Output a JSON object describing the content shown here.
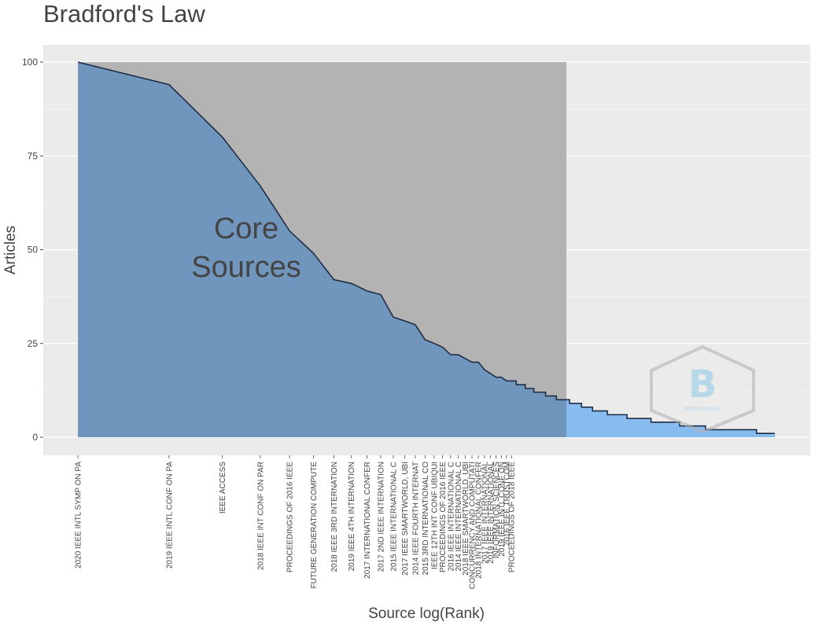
{
  "chart_data": {
    "type": "area",
    "title": "Bradford's Law",
    "xlabel": "Source log(Rank)",
    "ylabel": "Articles",
    "ylim": [
      0,
      100
    ],
    "yticks": [
      0,
      25,
      50,
      75,
      100
    ],
    "x_scale": "log",
    "grid": true,
    "annotation": "Core\nSources",
    "core_zone_count": 41,
    "num_sources": 200,
    "sources": [
      {
        "rank": 1,
        "name": "2020 IEEE INTL SYMP ON PA",
        "articles": 100
      },
      {
        "rank": 2,
        "name": "2019 IEEE INTL CONF ON PA",
        "articles": 94
      },
      {
        "rank": 3,
        "name": "IEEE ACCESS",
        "articles": 80
      },
      {
        "rank": 4,
        "name": "2018 IEEE INT CONF ON PAR",
        "articles": 67
      },
      {
        "rank": 5,
        "name": "PROCEEDINGS OF 2016 IEEE",
        "articles": 55
      },
      {
        "rank": 6,
        "name": "FUTURE GENERATION COMPUTE",
        "articles": 49
      },
      {
        "rank": 7,
        "name": "2018 IEEE 3RD INTERNATION",
        "articles": 42
      },
      {
        "rank": 8,
        "name": "2019 IEEE 4TH INTERNATION",
        "articles": 41
      },
      {
        "rank": 9,
        "name": "2017 INTERNATIONAL CONFER",
        "articles": 39
      },
      {
        "rank": 10,
        "name": "2017 2ND IEEE INTERNATION",
        "articles": 38
      },
      {
        "rank": 11,
        "name": "2015 IEEE INTERNATIONAL C",
        "articles": 32
      },
      {
        "rank": 12,
        "name": "2017 IEEE SMARTWORLD, UBI",
        "articles": 31
      },
      {
        "rank": 13,
        "name": "2014 IEEE FOURTH INTERNAT",
        "articles": 30
      },
      {
        "rank": 14,
        "name": "2015 3RD INTERNATIONAL CO",
        "articles": 26
      },
      {
        "rank": 15,
        "name": "IEEE 12TH INT CONF UBIQUI",
        "articles": 25
      },
      {
        "rank": 16,
        "name": "PROCEEDINGS OF 2016 IEEE",
        "articles": 24
      },
      {
        "rank": 17,
        "name": "2016 IEEE INTERNATIONAL C",
        "articles": 22
      },
      {
        "rank": 18,
        "name": "2014 IEEE INTERNATIONAL C",
        "articles": 22
      },
      {
        "rank": 19,
        "name": "2018 IEEE SMARTWORLD, UBI",
        "articles": 21
      },
      {
        "rank": 20,
        "name": "CONCURRENCY AND COMPUTATI",
        "articles": 20
      },
      {
        "rank": 21,
        "name": "2018 INTERNATIONAL CONFER",
        "articles": 20
      },
      {
        "rank": 22,
        "name": "2017 IEEE INTERNATIONAL",
        "articles": 18
      },
      {
        "rank": 23,
        "name": "2019 IEEE INTERNATIONAL",
        "articles": 17
      },
      {
        "rank": 24,
        "name": "INFORMATION SCIENCES",
        "articles": 16
      },
      {
        "rank": 25,
        "name": "2019 IEEE INTL CONF ON",
        "articles": 16
      },
      {
        "rank": 26,
        "name": "2016 IEEE TRUSTCOM",
        "articles": 15
      },
      {
        "rank": 27,
        "name": "PROCEEDINGS OF 2018 IEEE",
        "articles": 15
      }
    ],
    "tail_steps": [
      {
        "until_rank": 29,
        "articles": 14
      },
      {
        "until_rank": 31,
        "articles": 13
      },
      {
        "until_rank": 34,
        "articles": 12
      },
      {
        "until_rank": 37,
        "articles": 11
      },
      {
        "until_rank": 41,
        "articles": 10
      },
      {
        "until_rank": 45,
        "articles": 9
      },
      {
        "until_rank": 49,
        "articles": 8
      },
      {
        "until_rank": 55,
        "articles": 7
      },
      {
        "until_rank": 64,
        "articles": 6
      },
      {
        "until_rank": 77,
        "articles": 5
      },
      {
        "until_rank": 96,
        "articles": 4
      },
      {
        "until_rank": 117,
        "articles": 3
      },
      {
        "until_rank": 173,
        "articles": 2
      },
      {
        "until_rank": 200,
        "articles": 1
      }
    ],
    "colors": {
      "panel_bg": "#ebebeb",
      "grid": "#ffffff",
      "core_zone": "#b3b3b3",
      "core_area": "#7196bd",
      "tail_area": "#87bcf0",
      "line": "#1f2d44"
    }
  }
}
